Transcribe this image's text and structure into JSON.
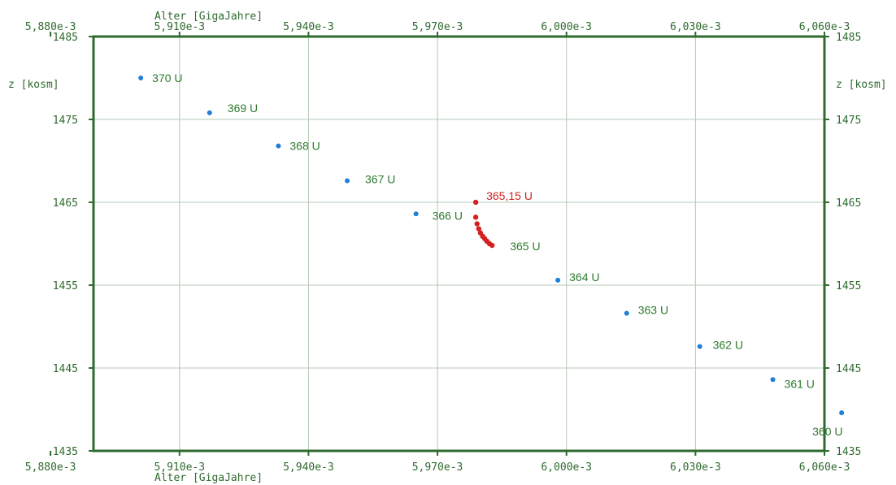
{
  "chart_data": {
    "type": "scatter",
    "xlabel_top": "Alter [GigaJahre]",
    "xlabel_bottom": "Alter [GigaJahre]",
    "ylabel_left": "z [kosm]",
    "ylabel_right": "z [kosm]",
    "xlim": [
      0.00589,
      0.00606
    ],
    "ylim": [
      1435,
      1485
    ],
    "x_ticks": [
      0.00588,
      0.00591,
      0.00594,
      0.00597,
      0.006,
      0.00603,
      0.00606
    ],
    "x_tick_labels_top": [
      "5,880e-3",
      "5,910e-3",
      "5,940e-3",
      "5,970e-3",
      "6,000e-3",
      "6,030e-3",
      "6,060e-3"
    ],
    "x_tick_labels_bottom": [
      "5,880e-3",
      "5,910e-3",
      "5,940e-3",
      "5,970e-3",
      "6,000e-3",
      "6,030e-3",
      "6,060e-3"
    ],
    "x_grid_ticks": [
      0.00591,
      0.00594,
      0.00597,
      0.006,
      0.00603
    ],
    "y_ticks": [
      1435,
      1445,
      1455,
      1465,
      1475,
      1485
    ],
    "y_tick_labels_left": [
      "1435",
      "1445",
      "1455",
      "1465",
      "1475",
      "1485"
    ],
    "y_tick_labels_right": [
      "1435",
      "1445",
      "1455",
      "1465",
      "1475",
      "1485"
    ],
    "grid": true,
    "colors": {
      "frame": "#2f6a2f",
      "grid": "#b4c8b4",
      "blue": "#1e7fd6",
      "red": "#d62020",
      "label_green": "#2f7a2f",
      "label_red": "#d62020"
    },
    "series": [
      {
        "color": "blue",
        "points": [
          {
            "x": 0.005901,
            "y": 1480.0,
            "label": "370 U",
            "label_dx": 14,
            "label_dy": 0
          },
          {
            "x": 0.005917,
            "y": 1475.8,
            "label": "369 U",
            "label_dx": 22,
            "label_dy": -6
          },
          {
            "x": 0.005933,
            "y": 1471.8,
            "label": "368 U",
            "label_dx": 14,
            "label_dy": 0
          },
          {
            "x": 0.005949,
            "y": 1467.6,
            "label": "367 U",
            "label_dx": 22,
            "label_dy": -2
          },
          {
            "x": 0.005965,
            "y": 1463.6,
            "label": "366 U",
            "label_dx": 20,
            "label_dy": 2
          },
          {
            "x": 0.005998,
            "y": 1455.6,
            "label": "364 U",
            "label_dx": 14,
            "label_dy": -4
          },
          {
            "x": 0.006014,
            "y": 1451.6,
            "label": "363 U",
            "label_dx": 14,
            "label_dy": -4
          },
          {
            "x": 0.006031,
            "y": 1447.6,
            "label": "362 U",
            "label_dx": 16,
            "label_dy": -2
          },
          {
            "x": 0.006048,
            "y": 1443.6,
            "label": "361 U",
            "label_dx": 14,
            "label_dy": 5
          },
          {
            "x": 0.006064,
            "y": 1439.6,
            "label": "360 U",
            "label_dx": -36,
            "label_dy": 23
          }
        ]
      },
      {
        "color": "red",
        "points": [
          {
            "x": 0.0059789,
            "y": 1465.0,
            "label": "365,15 U",
            "label_dx": 13,
            "label_dy": -8
          },
          {
            "x": 0.0059789,
            "y": 1463.2,
            "label": "",
            "label_dx": 0,
            "label_dy": 0
          },
          {
            "x": 0.0059792,
            "y": 1462.4,
            "label": "",
            "label_dx": 0,
            "label_dy": 0
          },
          {
            "x": 0.0059796,
            "y": 1461.8,
            "label": "",
            "label_dx": 0,
            "label_dy": 0
          },
          {
            "x": 0.00598,
            "y": 1461.3,
            "label": "",
            "label_dx": 0,
            "label_dy": 0
          },
          {
            "x": 0.0059805,
            "y": 1460.9,
            "label": "",
            "label_dx": 0,
            "label_dy": 0
          },
          {
            "x": 0.005981,
            "y": 1460.6,
            "label": "",
            "label_dx": 0,
            "label_dy": 0
          },
          {
            "x": 0.0059815,
            "y": 1460.3,
            "label": "",
            "label_dx": 0,
            "label_dy": 0
          },
          {
            "x": 0.0059821,
            "y": 1460.0,
            "label": "",
            "label_dx": 0,
            "label_dy": 0
          },
          {
            "x": 0.0059827,
            "y": 1459.8,
            "label": "",
            "label_dx": 0,
            "label_dy": 0
          }
        ]
      }
    ],
    "annotations": [
      {
        "text": "365 U",
        "x": 0.0059827,
        "y": 1459.8,
        "dx": 22,
        "dy": 1,
        "color": "label_green"
      }
    ]
  }
}
